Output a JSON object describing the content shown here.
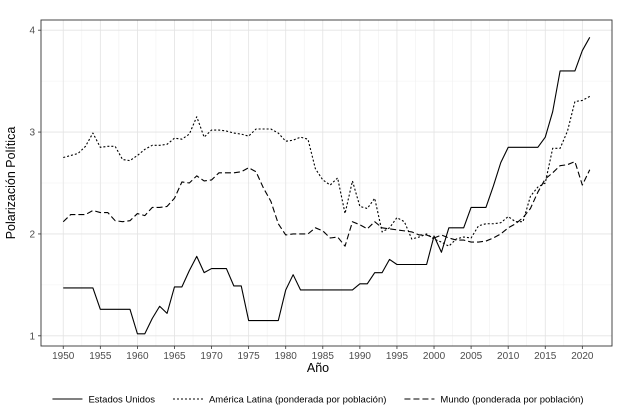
{
  "chart_data": {
    "type": "line",
    "title": "",
    "xlabel": "Año",
    "ylabel": "Polarización Política",
    "xlim": [
      1947,
      2024
    ],
    "ylim": [
      0.9,
      4.1
    ],
    "x_ticks": [
      1950,
      1955,
      1960,
      1965,
      1970,
      1975,
      1980,
      1985,
      1990,
      1995,
      2000,
      2005,
      2010,
      2015,
      2020
    ],
    "y_ticks": [
      1,
      2,
      3,
      4
    ],
    "grid": true,
    "legend_position": "bottom",
    "series": [
      {
        "name": "Estados Unidos",
        "dash": "",
        "points": [
          [
            1950,
            1.47
          ],
          [
            1951,
            1.47
          ],
          [
            1952,
            1.47
          ],
          [
            1953,
            1.47
          ],
          [
            1954,
            1.47
          ],
          [
            1955,
            1.26
          ],
          [
            1956,
            1.26
          ],
          [
            1957,
            1.26
          ],
          [
            1958,
            1.26
          ],
          [
            1959,
            1.26
          ],
          [
            1960,
            1.02
          ],
          [
            1961,
            1.02
          ],
          [
            1962,
            1.17
          ],
          [
            1963,
            1.29
          ],
          [
            1964,
            1.22
          ],
          [
            1965,
            1.48
          ],
          [
            1966,
            1.48
          ],
          [
            1967,
            1.64
          ],
          [
            1968,
            1.78
          ],
          [
            1969,
            1.62
          ],
          [
            1970,
            1.66
          ],
          [
            1971,
            1.66
          ],
          [
            1972,
            1.66
          ],
          [
            1973,
            1.49
          ],
          [
            1974,
            1.49
          ],
          [
            1975,
            1.15
          ],
          [
            1976,
            1.15
          ],
          [
            1977,
            1.15
          ],
          [
            1978,
            1.15
          ],
          [
            1979,
            1.15
          ],
          [
            1980,
            1.45
          ],
          [
            1981,
            1.6
          ],
          [
            1982,
            1.45
          ],
          [
            1983,
            1.45
          ],
          [
            1984,
            1.45
          ],
          [
            1985,
            1.45
          ],
          [
            1986,
            1.45
          ],
          [
            1987,
            1.45
          ],
          [
            1988,
            1.45
          ],
          [
            1989,
            1.45
          ],
          [
            1990,
            1.51
          ],
          [
            1991,
            1.51
          ],
          [
            1992,
            1.62
          ],
          [
            1993,
            1.62
          ],
          [
            1994,
            1.75
          ],
          [
            1995,
            1.7
          ],
          [
            1996,
            1.7
          ],
          [
            1997,
            1.7
          ],
          [
            1998,
            1.7
          ],
          [
            1999,
            1.7
          ],
          [
            2000,
            1.98
          ],
          [
            2001,
            1.82
          ],
          [
            2002,
            2.06
          ],
          [
            2003,
            2.06
          ],
          [
            2004,
            2.06
          ],
          [
            2005,
            2.26
          ],
          [
            2006,
            2.26
          ],
          [
            2007,
            2.26
          ],
          [
            2008,
            2.47
          ],
          [
            2009,
            2.7
          ],
          [
            2010,
            2.85
          ],
          [
            2011,
            2.85
          ],
          [
            2012,
            2.85
          ],
          [
            2013,
            2.85
          ],
          [
            2014,
            2.85
          ],
          [
            2015,
            2.95
          ],
          [
            2016,
            3.2
          ],
          [
            2017,
            3.6
          ],
          [
            2018,
            3.6
          ],
          [
            2019,
            3.6
          ],
          [
            2020,
            3.8
          ],
          [
            2021,
            3.93
          ]
        ]
      },
      {
        "name": "América Latina (ponderada por población)",
        "dash": "2,2",
        "points": [
          [
            1950,
            2.75
          ],
          [
            1951,
            2.77
          ],
          [
            1952,
            2.79
          ],
          [
            1953,
            2.86
          ],
          [
            1954,
            2.99
          ],
          [
            1955,
            2.85
          ],
          [
            1956,
            2.86
          ],
          [
            1957,
            2.86
          ],
          [
            1958,
            2.73
          ],
          [
            1959,
            2.72
          ],
          [
            1960,
            2.77
          ],
          [
            1961,
            2.83
          ],
          [
            1962,
            2.87
          ],
          [
            1963,
            2.87
          ],
          [
            1964,
            2.88
          ],
          [
            1965,
            2.94
          ],
          [
            1966,
            2.93
          ],
          [
            1967,
            2.98
          ],
          [
            1968,
            3.15
          ],
          [
            1969,
            2.95
          ],
          [
            1970,
            3.02
          ],
          [
            1971,
            3.02
          ],
          [
            1972,
            3.01
          ],
          [
            1973,
            2.99
          ],
          [
            1974,
            2.98
          ],
          [
            1975,
            2.96
          ],
          [
            1976,
            3.03
          ],
          [
            1977,
            3.03
          ],
          [
            1978,
            3.03
          ],
          [
            1979,
            2.99
          ],
          [
            1980,
            2.91
          ],
          [
            1981,
            2.92
          ],
          [
            1982,
            2.95
          ],
          [
            1983,
            2.93
          ],
          [
            1984,
            2.64
          ],
          [
            1985,
            2.53
          ],
          [
            1986,
            2.48
          ],
          [
            1987,
            2.55
          ],
          [
            1988,
            2.2
          ],
          [
            1989,
            2.52
          ],
          [
            1990,
            2.27
          ],
          [
            1991,
            2.25
          ],
          [
            1992,
            2.35
          ],
          [
            1993,
            2.02
          ],
          [
            1994,
            2.06
          ],
          [
            1995,
            2.16
          ],
          [
            1996,
            2.12
          ],
          [
            1997,
            1.95
          ],
          [
            1998,
            1.97
          ],
          [
            1999,
            2.0
          ],
          [
            2000,
            1.95
          ],
          [
            2001,
            1.92
          ],
          [
            2002,
            1.88
          ],
          [
            2003,
            1.95
          ],
          [
            2004,
            1.97
          ],
          [
            2005,
            1.96
          ],
          [
            2006,
            2.08
          ],
          [
            2007,
            2.1
          ],
          [
            2008,
            2.1
          ],
          [
            2009,
            2.11
          ],
          [
            2010,
            2.17
          ],
          [
            2011,
            2.12
          ],
          [
            2012,
            2.12
          ],
          [
            2013,
            2.37
          ],
          [
            2014,
            2.46
          ],
          [
            2015,
            2.5
          ],
          [
            2016,
            2.84
          ],
          [
            2017,
            2.84
          ],
          [
            2018,
            3.01
          ],
          [
            2019,
            3.3
          ],
          [
            2020,
            3.31
          ],
          [
            2021,
            3.35
          ]
        ]
      },
      {
        "name": "Mundo (ponderada por población)",
        "dash": "6,3",
        "points": [
          [
            1950,
            2.12
          ],
          [
            1951,
            2.19
          ],
          [
            1952,
            2.19
          ],
          [
            1953,
            2.19
          ],
          [
            1954,
            2.23
          ],
          [
            1955,
            2.21
          ],
          [
            1956,
            2.21
          ],
          [
            1957,
            2.13
          ],
          [
            1958,
            2.12
          ],
          [
            1959,
            2.13
          ],
          [
            1960,
            2.2
          ],
          [
            1961,
            2.18
          ],
          [
            1962,
            2.26
          ],
          [
            1963,
            2.26
          ],
          [
            1964,
            2.27
          ],
          [
            1965,
            2.35
          ],
          [
            1966,
            2.51
          ],
          [
            1967,
            2.5
          ],
          [
            1968,
            2.57
          ],
          [
            1969,
            2.52
          ],
          [
            1970,
            2.53
          ],
          [
            1971,
            2.6
          ],
          [
            1972,
            2.6
          ],
          [
            1973,
            2.6
          ],
          [
            1974,
            2.61
          ],
          [
            1975,
            2.65
          ],
          [
            1976,
            2.61
          ],
          [
            1977,
            2.45
          ],
          [
            1978,
            2.32
          ],
          [
            1979,
            2.1
          ],
          [
            1980,
            1.99
          ],
          [
            1981,
            2.0
          ],
          [
            1982,
            2.0
          ],
          [
            1983,
            2.0
          ],
          [
            1984,
            2.06
          ],
          [
            1985,
            2.03
          ],
          [
            1986,
            1.96
          ],
          [
            1987,
            1.97
          ],
          [
            1988,
            1.88
          ],
          [
            1989,
            2.12
          ],
          [
            1990,
            2.09
          ],
          [
            1991,
            2.05
          ],
          [
            1992,
            2.12
          ],
          [
            1993,
            2.06
          ],
          [
            1994,
            2.05
          ],
          [
            1995,
            2.04
          ],
          [
            1996,
            2.03
          ],
          [
            1997,
            2.02
          ],
          [
            1998,
            1.99
          ],
          [
            1999,
            1.99
          ],
          [
            2000,
            1.96
          ],
          [
            2001,
            1.99
          ],
          [
            2002,
            1.96
          ],
          [
            2003,
            1.94
          ],
          [
            2004,
            1.94
          ],
          [
            2005,
            1.92
          ],
          [
            2006,
            1.92
          ],
          [
            2007,
            1.93
          ],
          [
            2008,
            1.96
          ],
          [
            2009,
            2.0
          ],
          [
            2010,
            2.06
          ],
          [
            2011,
            2.1
          ],
          [
            2012,
            2.16
          ],
          [
            2013,
            2.25
          ],
          [
            2014,
            2.41
          ],
          [
            2015,
            2.54
          ],
          [
            2016,
            2.6
          ],
          [
            2017,
            2.67
          ],
          [
            2018,
            2.68
          ],
          [
            2019,
            2.71
          ],
          [
            2020,
            2.48
          ],
          [
            2021,
            2.63
          ]
        ]
      }
    ]
  }
}
